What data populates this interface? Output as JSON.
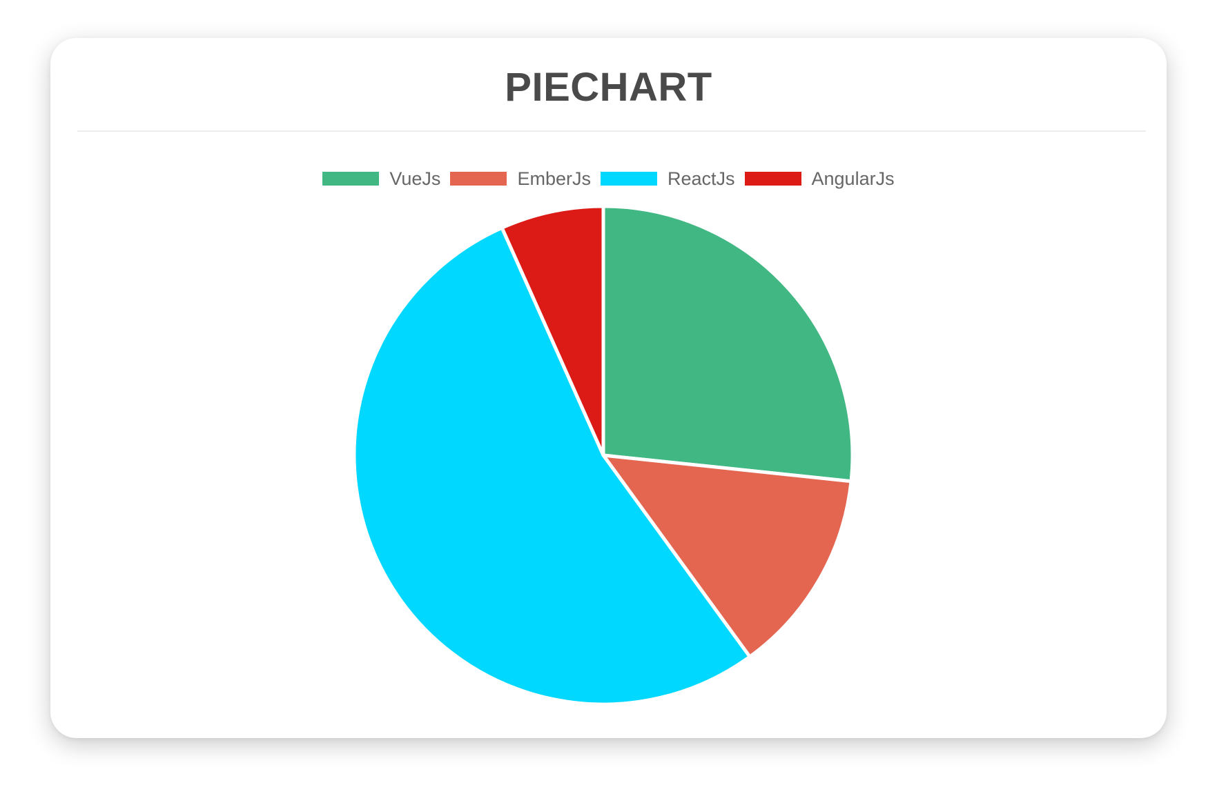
{
  "page": {
    "title": "PIECHART"
  },
  "chart_data": {
    "type": "pie",
    "title": "PIECHART",
    "labels": [
      "VueJs",
      "EmberJs",
      "ReactJs",
      "AngularJs"
    ],
    "values": [
      40,
      20,
      80,
      10
    ],
    "percentages": [
      26.7,
      13.3,
      53.3,
      6.7
    ],
    "colors": [
      "#41B883",
      "#E46651",
      "#00D8FF",
      "#DD1B16"
    ],
    "legend_position": "top",
    "start_angle_deg": 0,
    "direction": "clockwise",
    "slice_border_color": "#ffffff",
    "slice_border_width": 5
  },
  "theme": {
    "title_color": "#4a4a4a",
    "legend_text_color": "#666666",
    "card_background": "#ffffff",
    "divider_color": "#ededed"
  }
}
